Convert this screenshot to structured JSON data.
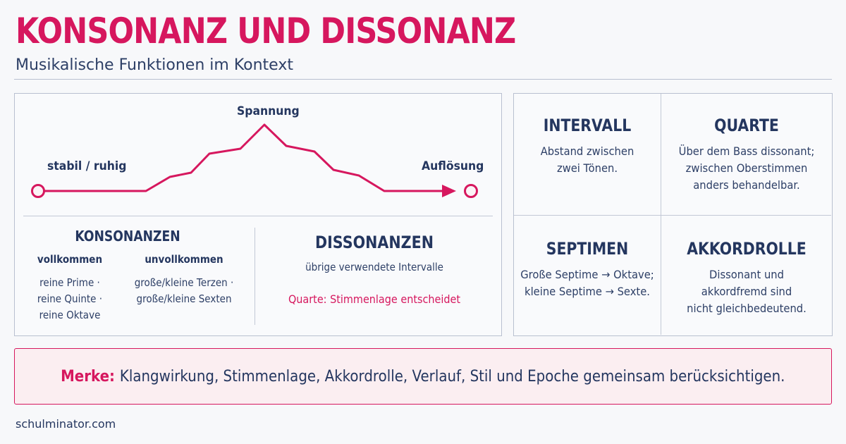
{
  "header": {
    "title": "KONSONANZ UND DISSONANZ",
    "subtitle": "Musikalische Funktionen im Kontext"
  },
  "colors": {
    "accent": "#d6175e",
    "navy": "#24365f",
    "border": "#b9c0d0",
    "merke_bg": "#fbeef1"
  },
  "tension_curve": {
    "label_start": "stabil / ruhig",
    "label_peak": "Spannung",
    "label_end": "Auflösung"
  },
  "konsonanzen": {
    "heading": "KONSONANZEN",
    "vollkommen": {
      "heading": "vollkommen",
      "lines": [
        "reine Prime ·",
        "reine Quinte ·",
        "reine Oktave"
      ]
    },
    "unvollkommen": {
      "heading": "unvollkommen",
      "lines": [
        "große/kleine Terzen ·",
        "große/kleine Sexten"
      ]
    }
  },
  "dissonanzen": {
    "heading": "DISSONANZEN",
    "text": "übrige verwendete Intervalle",
    "note": "Quarte: Stimmenlage entscheidet"
  },
  "cards": [
    {
      "heading": "INTERVALL",
      "lines": [
        "Abstand zwischen",
        "zwei Tönen."
      ]
    },
    {
      "heading": "QUARTE",
      "lines": [
        "Über dem Bass dissonant;",
        "zwischen Oberstimmen",
        "anders behandelbar."
      ]
    },
    {
      "heading": "SEPTIMEN",
      "lines": [
        "Große Septime → Oktave;",
        "kleine Septime → Sexte."
      ]
    },
    {
      "heading": "AKKORDROLLE",
      "lines": [
        "Dissonant und",
        "akkordfremd sind",
        "nicht gleichbedeutend."
      ]
    }
  ],
  "merke": {
    "label": "Merke:",
    "text": "Klangwirkung, Stimmenlage, Akkordrolle, Verlauf, Stil und Epoche gemeinsam berücksichtigen."
  },
  "footer": {
    "text": "schulminator.com"
  }
}
